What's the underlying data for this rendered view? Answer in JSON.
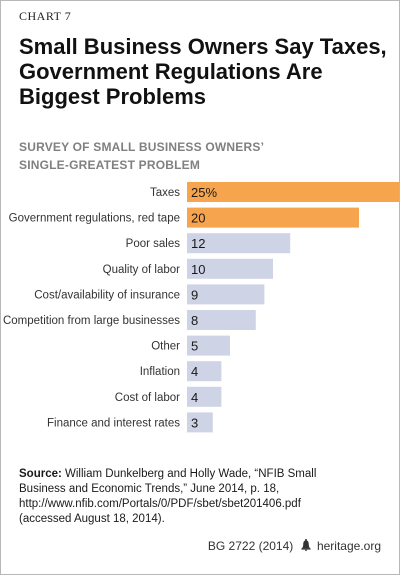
{
  "chart_label": "CHART 7",
  "title_lines": [
    "Small Business Owners Say Taxes,",
    "Government Regulations Are",
    "Biggest Problems"
  ],
  "subtitle_lines": [
    "SURVEY OF SMALL BUSINESS OWNERS’",
    "SINGLE-GREATEST PROBLEM"
  ],
  "chart_data": {
    "type": "bar",
    "orientation": "horizontal",
    "categories": [
      "Taxes",
      "Government regulations, red tape",
      "Poor sales",
      "Quality of labor",
      "Cost/availability of insurance",
      "Competition from large businesses",
      "Other",
      "Inflation",
      "Cost of labor",
      "Finance and interest rates"
    ],
    "values": [
      25,
      20,
      12,
      10,
      9,
      8,
      5,
      4,
      4,
      3
    ],
    "value_labels": [
      "25%",
      "20",
      "12",
      "10",
      "9",
      "8",
      "5",
      "4",
      "4",
      "3"
    ],
    "unit": "%",
    "highlighted": [
      true,
      true,
      false,
      false,
      false,
      false,
      false,
      false,
      false,
      false
    ],
    "colors": {
      "highlight": "#f7a44f",
      "normal": "#cfd3e6"
    },
    "xlim": [
      0,
      25
    ],
    "grid": false,
    "legend": "none",
    "title": "Small Business Owners Say Taxes, Government Regulations Are Biggest Problems",
    "xlabel": "",
    "ylabel": ""
  },
  "source": {
    "label": "Source:",
    "first_line_rest": " William Dunkelberg and Holly Wade, “NFIB Small",
    "lines": [
      "Business and Economic Trends,” June 2014, p. 18,",
      "http://www.nfib.com/Portals/0/PDF/sbet/sbet201406.pdf",
      "(accessed August 18, 2014)."
    ]
  },
  "footer": {
    "code": "BG 2722 (2014)",
    "site": "heritage.org",
    "icon": "liberty-bell-icon"
  }
}
